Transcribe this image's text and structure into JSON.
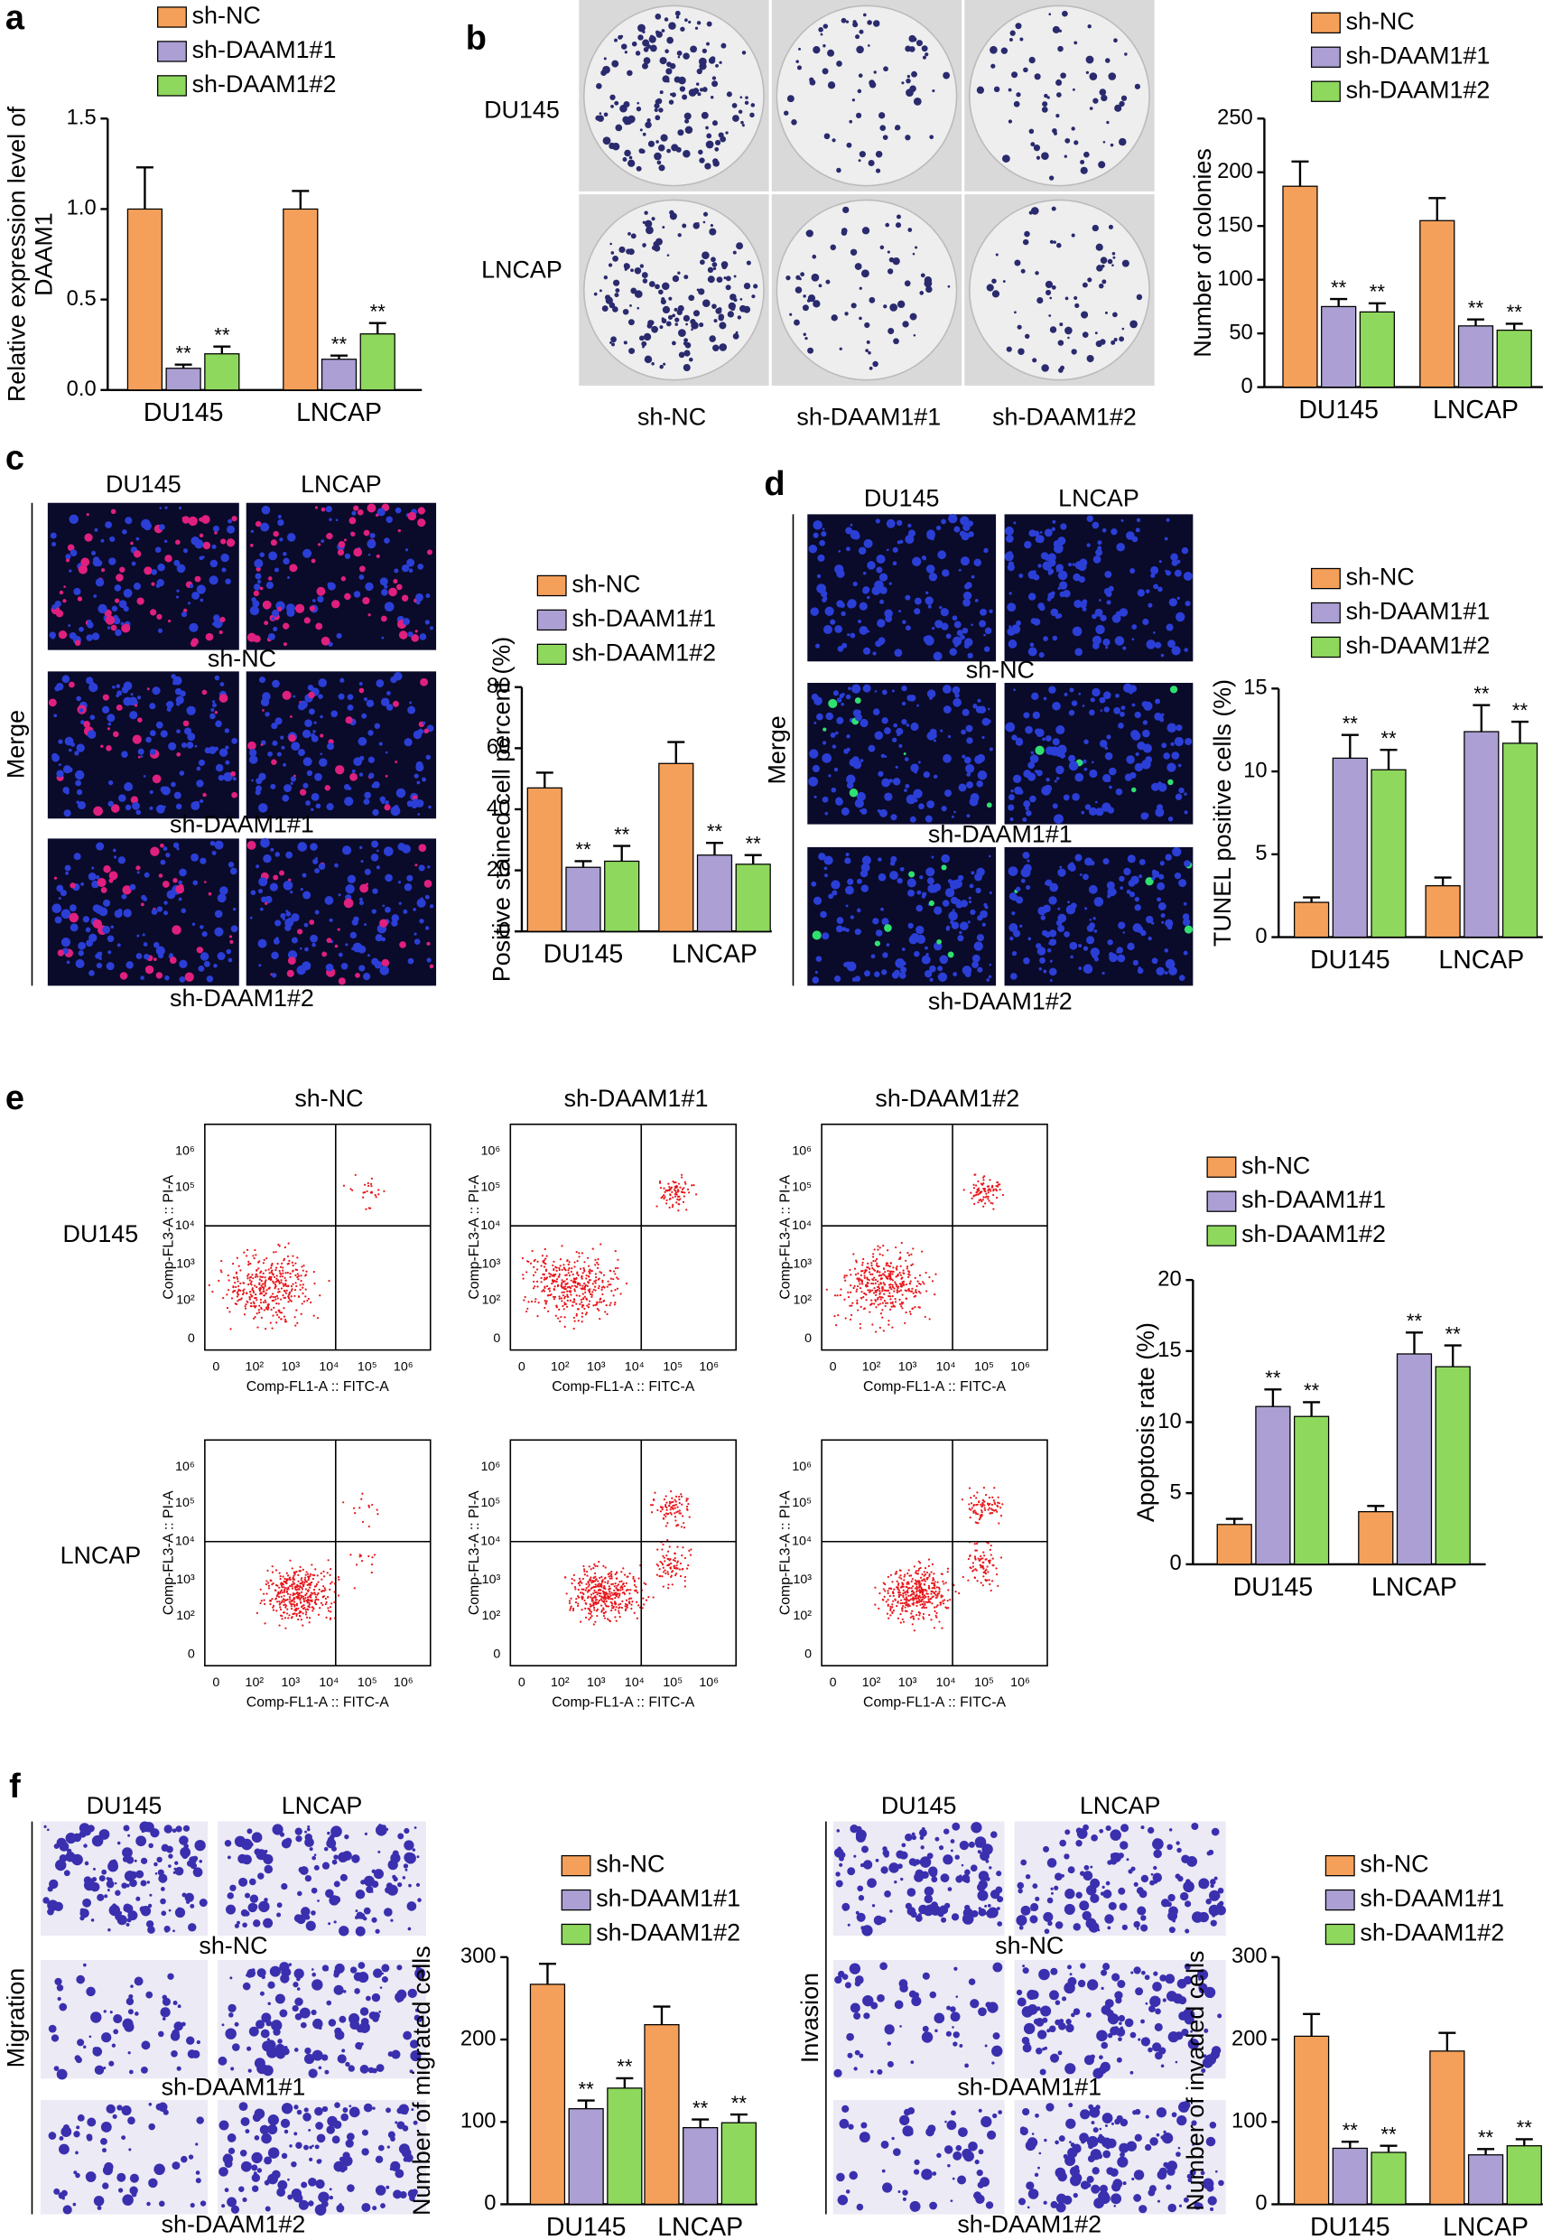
{
  "figure": {
    "letters": [
      "a",
      "b",
      "c",
      "d",
      "e",
      "f"
    ],
    "b_photos": {
      "rows": [
        "DU145",
        "LNCAP"
      ],
      "cols": [
        "sh-NC",
        "sh-DAAM1#1",
        "sh-DAAM1#2"
      ]
    },
    "c_photos": {
      "cols": [
        "DU145",
        "LNCAP"
      ],
      "rows": [
        "sh-NC",
        "sh-DAAM1#1",
        "sh-DAAM1#2"
      ],
      "side": "Merge"
    },
    "d_photos": {
      "cols": [
        "DU145",
        "LNCAP"
      ],
      "rows": [
        "sh-NC",
        "sh-DAAM1#1",
        "sh-DAAM1#2"
      ],
      "side": "Merge"
    },
    "e_flow": {
      "cols": [
        "sh-NC",
        "sh-DAAM1#1",
        "sh-DAAM1#2"
      ],
      "rows": [
        "DU145",
        "LNCAP"
      ],
      "x_label": "Comp-FL1-A :: FITC-A",
      "y_label": "Comp-FL3-A :: PI-A",
      "x_ticks": [
        "0",
        "10²",
        "10³",
        "10⁴",
        "10⁵",
        "10⁶"
      ],
      "y_ticks": [
        "0",
        "10²",
        "10³",
        "10⁴",
        "10⁵",
        "10⁶"
      ]
    },
    "f_migration": {
      "cols": [
        "DU145",
        "LNCAP"
      ],
      "rows": [
        "sh-NC",
        "sh-DAAM1#1",
        "sh-DAAM1#2"
      ],
      "side": "Migration"
    },
    "f_invasion": {
      "cols": [
        "DU145",
        "LNCAP"
      ],
      "rows": [
        "sh-NC",
        "sh-DAAM1#1",
        "sh-DAAM1#2"
      ],
      "side": "Invasion"
    }
  },
  "chart_data": [
    {
      "type": "bar",
      "ylabel": [
        "Relative expression level of",
        "DAAM1"
      ],
      "categories": [
        "DU145",
        "LNCAP"
      ],
      "ylim": [
        0,
        1.5
      ],
      "yticks": [
        {
          "value": 0,
          "label": "0.0"
        },
        {
          "value": 0.5,
          "label": "0.5"
        },
        {
          "value": 1,
          "label": "1.0"
        },
        {
          "value": 1.5,
          "label": "1.5"
        }
      ],
      "series": [
        {
          "name": "sh-NC",
          "color": "#f5a05a",
          "values": [
            1.0,
            1.0
          ],
          "errors": [
            0.23,
            0.1
          ]
        },
        {
          "name": "sh-DAAM1#1",
          "color": "#ab9fd3",
          "values": [
            0.12,
            0.17
          ],
          "errors": [
            0.02,
            0.02
          ],
          "labels": [
            "**",
            "**"
          ]
        },
        {
          "name": "sh-DAAM1#2",
          "color": "#8fd85e",
          "values": [
            0.2,
            0.31
          ],
          "errors": [
            0.04,
            0.06
          ],
          "labels": [
            "**",
            "**"
          ]
        }
      ]
    },
    {
      "type": "bar",
      "ylabel": [
        "Number of colonies"
      ],
      "categories": [
        "DU145",
        "LNCAP"
      ],
      "ylim": [
        0,
        250
      ],
      "yticks": [
        0,
        50,
        100,
        150,
        200,
        250
      ],
      "series": [
        {
          "name": "sh-NC",
          "color": "#f5a05a",
          "values": [
            187,
            155
          ],
          "errors": [
            23,
            21
          ]
        },
        {
          "name": "sh-DAAM1#1",
          "color": "#ab9fd3",
          "values": [
            75,
            57
          ],
          "errors": [
            7,
            6
          ],
          "labels": [
            "**",
            "**"
          ]
        },
        {
          "name": "sh-DAAM1#2",
          "color": "#8fd85e",
          "values": [
            70,
            53
          ],
          "errors": [
            8,
            6
          ],
          "labels": [
            "**",
            "**"
          ]
        }
      ]
    },
    {
      "type": "bar",
      "ylabel": [
        "Positive stained cell percent (%)"
      ],
      "categories": [
        "DU145",
        "LNCAP"
      ],
      "ylim": [
        0,
        80
      ],
      "yticks": [
        0,
        20,
        40,
        60,
        80
      ],
      "series": [
        {
          "name": "sh-NC",
          "color": "#f5a05a",
          "values": [
            47,
            55
          ],
          "errors": [
            5,
            7
          ]
        },
        {
          "name": "sh-DAAM1#1",
          "color": "#ab9fd3",
          "values": [
            21,
            25
          ],
          "errors": [
            2,
            4
          ],
          "labels": [
            "**",
            "**"
          ]
        },
        {
          "name": "sh-DAAM1#2",
          "color": "#8fd85e",
          "values": [
            23,
            22
          ],
          "errors": [
            5,
            3
          ],
          "labels": [
            "**",
            "**"
          ]
        }
      ]
    },
    {
      "type": "bar",
      "ylabel": [
        "TUNEL positive cells (%)"
      ],
      "categories": [
        "DU145",
        "LNCAP"
      ],
      "ylim": [
        0,
        15
      ],
      "yticks": [
        0,
        5,
        10,
        15
      ],
      "series": [
        {
          "name": "sh-NC",
          "color": "#f5a05a",
          "values": [
            2.1,
            3.1
          ],
          "errors": [
            0.3,
            0.5
          ]
        },
        {
          "name": "sh-DAAM1#1",
          "color": "#ab9fd3",
          "values": [
            10.8,
            12.4
          ],
          "errors": [
            1.4,
            1.6
          ],
          "labels": [
            "**",
            "**"
          ]
        },
        {
          "name": "sh-DAAM1#2",
          "color": "#8fd85e",
          "values": [
            10.1,
            11.7
          ],
          "errors": [
            1.2,
            1.3
          ],
          "labels": [
            "**",
            "**"
          ]
        }
      ]
    },
    {
      "type": "bar",
      "ylabel": [
        "Apoptosis rate (%)"
      ],
      "categories": [
        "DU145",
        "LNCAP"
      ],
      "ylim": [
        0,
        20
      ],
      "yticks": [
        0,
        5,
        10,
        15,
        20
      ],
      "series": [
        {
          "name": "sh-NC",
          "color": "#f5a05a",
          "values": [
            2.8,
            3.7
          ],
          "errors": [
            0.4,
            0.4
          ]
        },
        {
          "name": "sh-DAAM1#1",
          "color": "#ab9fd3",
          "values": [
            11.1,
            14.8
          ],
          "errors": [
            1.2,
            1.5
          ],
          "labels": [
            "**",
            "**"
          ]
        },
        {
          "name": "sh-DAAM1#2",
          "color": "#8fd85e",
          "values": [
            10.4,
            13.9
          ],
          "errors": [
            1.0,
            1.5
          ],
          "labels": [
            "**",
            "**"
          ]
        }
      ]
    },
    {
      "type": "bar",
      "ylabel": [
        "Number of migrated cells"
      ],
      "categories": [
        "DU145",
        "LNCAP"
      ],
      "ylim": [
        0,
        300
      ],
      "yticks": [
        0,
        100,
        200,
        300
      ],
      "series": [
        {
          "name": "sh-NC",
          "color": "#f5a05a",
          "values": [
            267,
            218
          ],
          "errors": [
            25,
            22
          ]
        },
        {
          "name": "sh-DAAM1#1",
          "color": "#ab9fd3",
          "values": [
            116,
            93
          ],
          "errors": [
            10,
            10
          ],
          "labels": [
            "**",
            "**"
          ]
        },
        {
          "name": "sh-DAAM1#2",
          "color": "#8fd85e",
          "values": [
            141,
            99
          ],
          "errors": [
            12,
            10
          ],
          "labels": [
            "**",
            "**"
          ]
        }
      ]
    },
    {
      "type": "bar",
      "ylabel": [
        "Number of invaded cells"
      ],
      "categories": [
        "DU145",
        "LNCAP"
      ],
      "ylim": [
        0,
        300
      ],
      "yticks": [
        0,
        100,
        200,
        300
      ],
      "series": [
        {
          "name": "sh-NC",
          "color": "#f5a05a",
          "values": [
            204,
            186
          ],
          "errors": [
            27,
            22
          ]
        },
        {
          "name": "sh-DAAM1#1",
          "color": "#ab9fd3",
          "values": [
            68,
            60
          ],
          "errors": [
            8,
            7
          ],
          "labels": [
            "**",
            "**"
          ]
        },
        {
          "name": "sh-DAAM1#2",
          "color": "#8fd85e",
          "values": [
            63,
            71
          ],
          "errors": [
            8,
            8
          ],
          "labels": [
            "**",
            "**"
          ]
        }
      ]
    }
  ]
}
